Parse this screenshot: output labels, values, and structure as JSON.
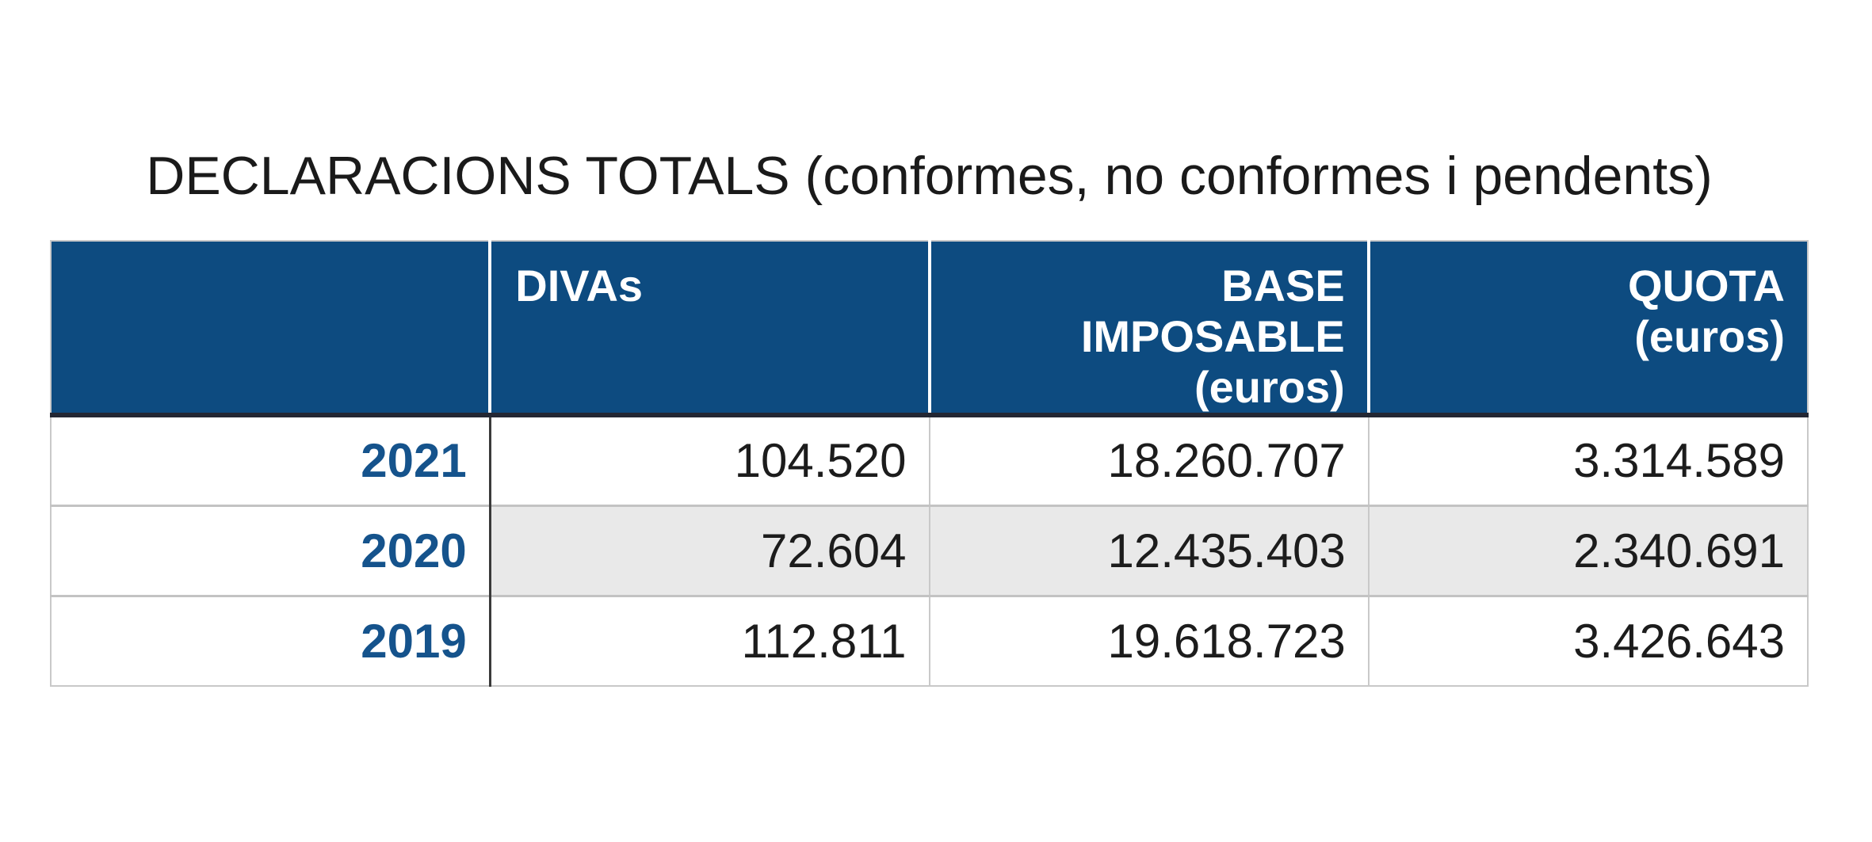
{
  "title": "DECLARACIONS TOTALS (conformes, no conformes i pendents)",
  "table": {
    "headers": [
      {
        "label": "",
        "sublabel": ""
      },
      {
        "label": "DIVAs",
        "sublabel": ""
      },
      {
        "label": "BASE IMPOSABLE",
        "sublabel": "(euros)"
      },
      {
        "label": "QUOTA",
        "sublabel": "(euros)"
      }
    ],
    "rows": [
      {
        "year": "2021",
        "values": [
          "104.520",
          "18.260.707",
          "3.314.589"
        ]
      },
      {
        "year": "2020",
        "values": [
          "72.604",
          "12.435.403",
          "2.340.691"
        ]
      },
      {
        "year": "2019",
        "values": [
          "112.811",
          "19.618.723",
          "3.426.643"
        ]
      }
    ]
  },
  "chart_data": {
    "type": "table",
    "title": "DECLARACIONS TOTALS (conformes, no conformes i pendents)",
    "columns": [
      "",
      "DIVAs",
      "BASE IMPOSABLE (euros)",
      "QUOTA (euros)"
    ],
    "rows": [
      [
        "2021",
        104520,
        18260707,
        3314589
      ],
      [
        "2020",
        72604,
        12435403,
        2340691
      ],
      [
        "2019",
        112811,
        19618723,
        3426643
      ]
    ],
    "number_format": "thousands separated by '.' (ca-ES)"
  },
  "colors": {
    "header_bg": "#0d4b80",
    "header_text": "#ffffff",
    "header_bottom_line": "#232733",
    "year_text": "#15538c",
    "stripe_bg": "#e9e9e9",
    "body_text": "#1c1c1c",
    "grid_border": "#c9c9c9",
    "dark_column_divider": "#3a3a3a"
  }
}
